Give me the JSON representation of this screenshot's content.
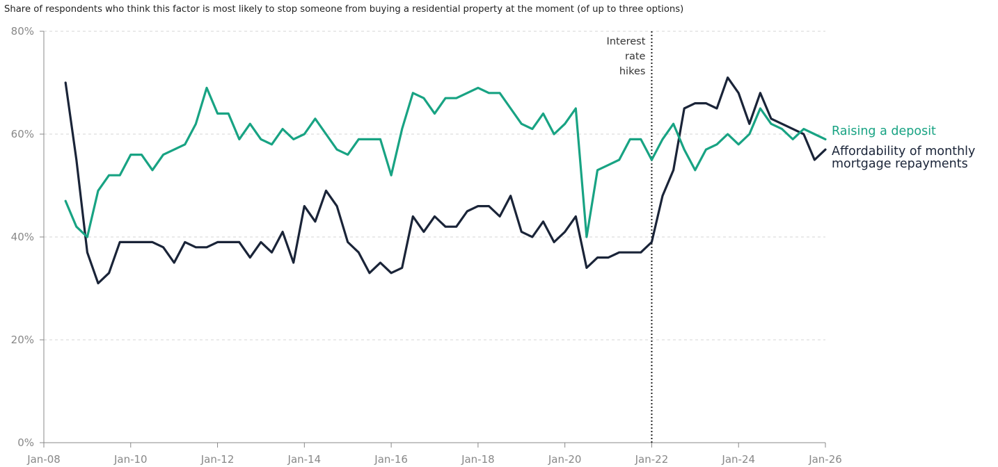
{
  "chart_data": {
    "type": "line",
    "subtitle": "Share of respondents who think this factor is most likely to stop someone from buying a residential property at the moment (of up to three options)",
    "x_tick_labels": [
      "Jan-08",
      "Jan-10",
      "Jan-12",
      "Jan-14",
      "Jan-16",
      "Jan-18",
      "Jan-20",
      "Jan-22",
      "Jan-24",
      "Jan-26"
    ],
    "y_tick_labels": [
      "0%",
      "20%",
      "40%",
      "60%",
      "80%"
    ],
    "ylim": [
      0,
      80
    ],
    "grid": "horizontal dashed",
    "annotation": {
      "lines": [
        "Interest",
        "rate",
        "hikes"
      ],
      "at": "Jan-22"
    },
    "colors": {
      "deposit": "#18a383",
      "affordability": "#1a2438",
      "axis": "#888888",
      "grid": "#d5d5d5"
    },
    "series": [
      {
        "name": "Raising a deposit",
        "points": [
          [
            "2008-07",
            47
          ],
          [
            "2008-10",
            42
          ],
          [
            "2009-01",
            40
          ],
          [
            "2009-04",
            49
          ],
          [
            "2009-07",
            52
          ],
          [
            "2009-10",
            52
          ],
          [
            "2010-01",
            56
          ],
          [
            "2010-04",
            56
          ],
          [
            "2010-07",
            53
          ],
          [
            "2010-10",
            56
          ],
          [
            "2011-01",
            57
          ],
          [
            "2011-04",
            58
          ],
          [
            "2011-07",
            62
          ],
          [
            "2011-10",
            69
          ],
          [
            "2012-01",
            64
          ],
          [
            "2012-04",
            64
          ],
          [
            "2012-07",
            59
          ],
          [
            "2012-10",
            62
          ],
          [
            "2013-01",
            59
          ],
          [
            "2013-04",
            58
          ],
          [
            "2013-07",
            61
          ],
          [
            "2013-10",
            59
          ],
          [
            "2014-01",
            60
          ],
          [
            "2014-04",
            63
          ],
          [
            "2014-07",
            60
          ],
          [
            "2014-10",
            57
          ],
          [
            "2015-01",
            56
          ],
          [
            "2015-04",
            59
          ],
          [
            "2015-07",
            59
          ],
          [
            "2015-10",
            59
          ],
          [
            "2016-01",
            52
          ],
          [
            "2016-04",
            61
          ],
          [
            "2016-07",
            68
          ],
          [
            "2016-10",
            67
          ],
          [
            "2017-01",
            64
          ],
          [
            "2017-04",
            67
          ],
          [
            "2017-07",
            67
          ],
          [
            "2017-10",
            68
          ],
          [
            "2018-01",
            69
          ],
          [
            "2018-04",
            68
          ],
          [
            "2018-07",
            68
          ],
          [
            "2018-10",
            65
          ],
          [
            "2019-01",
            62
          ],
          [
            "2019-04",
            61
          ],
          [
            "2019-07",
            64
          ],
          [
            "2019-10",
            60
          ],
          [
            "2020-01",
            62
          ],
          [
            "2020-04",
            65
          ],
          [
            "2020-07",
            40
          ],
          [
            "2020-10",
            53
          ],
          [
            "2021-01",
            54
          ],
          [
            "2021-04",
            55
          ],
          [
            "2021-07",
            59
          ],
          [
            "2021-10",
            59
          ],
          [
            "2022-01",
            55
          ],
          [
            "2022-04",
            59
          ],
          [
            "2022-07",
            62
          ],
          [
            "2022-10",
            57
          ],
          [
            "2023-01",
            53
          ],
          [
            "2023-04",
            57
          ],
          [
            "2023-07",
            58
          ],
          [
            "2023-10",
            60
          ],
          [
            "2024-01",
            58
          ],
          [
            "2024-04",
            60
          ],
          [
            "2024-07",
            65
          ],
          [
            "2024-10",
            62
          ],
          [
            "2025-01",
            61
          ],
          [
            "2025-04",
            59
          ],
          [
            "2025-07",
            61
          ],
          [
            "2025-10",
            60
          ],
          [
            "2026-01",
            59
          ]
        ]
      },
      {
        "name": "Affordability of monthly mortgage repayments",
        "points": [
          [
            "2008-07",
            70
          ],
          [
            "2008-10",
            55
          ],
          [
            "2009-01",
            37
          ],
          [
            "2009-04",
            31
          ],
          [
            "2009-07",
            33
          ],
          [
            "2009-10",
            39
          ],
          [
            "2010-01",
            39
          ],
          [
            "2010-04",
            39
          ],
          [
            "2010-07",
            39
          ],
          [
            "2010-10",
            38
          ],
          [
            "2011-01",
            35
          ],
          [
            "2011-04",
            39
          ],
          [
            "2011-07",
            38
          ],
          [
            "2011-10",
            38
          ],
          [
            "2012-01",
            39
          ],
          [
            "2012-04",
            39
          ],
          [
            "2012-07",
            39
          ],
          [
            "2012-10",
            36
          ],
          [
            "2013-01",
            39
          ],
          [
            "2013-04",
            37
          ],
          [
            "2013-07",
            41
          ],
          [
            "2013-10",
            35
          ],
          [
            "2014-01",
            46
          ],
          [
            "2014-04",
            43
          ],
          [
            "2014-07",
            49
          ],
          [
            "2014-10",
            46
          ],
          [
            "2015-01",
            39
          ],
          [
            "2015-04",
            37
          ],
          [
            "2015-07",
            33
          ],
          [
            "2015-10",
            35
          ],
          [
            "2016-01",
            33
          ],
          [
            "2016-04",
            34
          ],
          [
            "2016-07",
            44
          ],
          [
            "2016-10",
            41
          ],
          [
            "2017-01",
            44
          ],
          [
            "2017-04",
            42
          ],
          [
            "2017-07",
            42
          ],
          [
            "2017-10",
            45
          ],
          [
            "2018-01",
            46
          ],
          [
            "2018-04",
            46
          ],
          [
            "2018-07",
            44
          ],
          [
            "2018-10",
            48
          ],
          [
            "2019-01",
            41
          ],
          [
            "2019-04",
            40
          ],
          [
            "2019-07",
            43
          ],
          [
            "2019-10",
            39
          ],
          [
            "2020-01",
            41
          ],
          [
            "2020-04",
            44
          ],
          [
            "2020-07",
            34
          ],
          [
            "2020-10",
            36
          ],
          [
            "2021-01",
            36
          ],
          [
            "2021-04",
            37
          ],
          [
            "2021-07",
            37
          ],
          [
            "2021-10",
            37
          ],
          [
            "2022-01",
            39
          ],
          [
            "2022-04",
            48
          ],
          [
            "2022-07",
            53
          ],
          [
            "2022-10",
            65
          ],
          [
            "2023-01",
            66
          ],
          [
            "2023-04",
            66
          ],
          [
            "2023-07",
            65
          ],
          [
            "2023-10",
            71
          ],
          [
            "2024-01",
            68
          ],
          [
            "2024-04",
            62
          ],
          [
            "2024-07",
            68
          ],
          [
            "2024-10",
            63
          ],
          [
            "2025-01",
            62
          ],
          [
            "2025-04",
            61
          ],
          [
            "2025-07",
            60
          ],
          [
            "2025-10",
            55
          ],
          [
            "2026-01",
            57
          ]
        ]
      }
    ],
    "series_labels": {
      "deposit": [
        "Raising a deposit"
      ],
      "affordability": [
        "Affordability of monthly",
        "mortgage repayments"
      ]
    }
  }
}
